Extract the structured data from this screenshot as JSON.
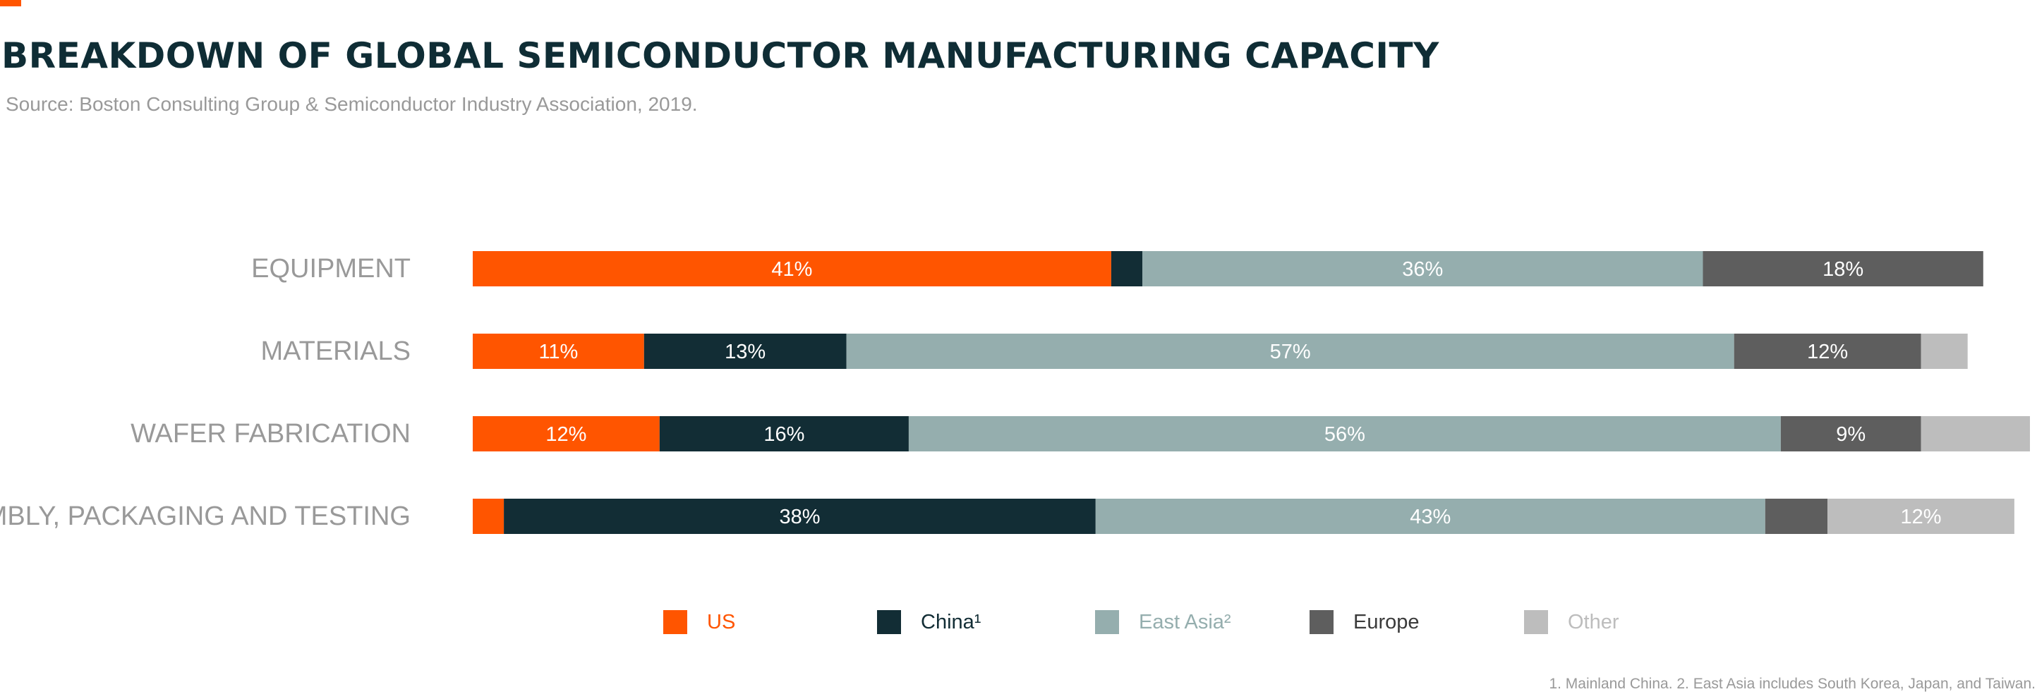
{
  "header": {
    "title": "BREAKDOWN OF GLOBAL SEMICONDUCTOR MANUFACTURING CAPACITY",
    "source": "Source: Boston Consulting Group & Semiconductor Industry Association, 2019."
  },
  "footnote": "1. Mainland China. 2. East Asia includes South Korea, Japan, and Taiwan.",
  "colors": {
    "accent": "#ff5500",
    "title": "#0f2d35",
    "us": "#ff5500",
    "china": "#122d35",
    "east_asia": "#95aeae",
    "europe": "#5e5e5e",
    "other": "#bdbdbd",
    "category_label": "#999999",
    "bar_label": "#ffffff"
  },
  "legend": [
    {
      "name": "US",
      "text_color": "#ff5500"
    },
    {
      "name": "China¹",
      "text_color": "#122d35"
    },
    {
      "name": "East Asia²",
      "text_color": "#95aeae"
    },
    {
      "name": "Europe",
      "text_color": "#3a3a3a"
    },
    {
      "name": "Other",
      "text_color": "#bdbdbd"
    }
  ],
  "chart_data": {
    "type": "bar",
    "orientation": "horizontal",
    "stacked": true,
    "categories": [
      "EQUIPMENT",
      "MATERIALS",
      "WAFER FABRICATION",
      "ASSEMBLY, PACKAGING AND TESTING"
    ],
    "series": [
      {
        "name": "US",
        "values": [
          41,
          11,
          12,
          2
        ],
        "labels": [
          "41%",
          "11%",
          "12%",
          ""
        ]
      },
      {
        "name": "China¹",
        "values": [
          2,
          13,
          16,
          38
        ],
        "labels": [
          "",
          "13%",
          "16%",
          "38%"
        ]
      },
      {
        "name": "East Asia²",
        "values": [
          36,
          57,
          56,
          43
        ],
        "labels": [
          "36%",
          "57%",
          "56%",
          "43%"
        ]
      },
      {
        "name": "Europe",
        "values": [
          18,
          12,
          9,
          4
        ],
        "labels": [
          "18%",
          "12%",
          "9%",
          ""
        ]
      },
      {
        "name": "Other",
        "values": [
          0,
          3,
          7,
          12
        ],
        "labels": [
          "",
          "",
          "",
          "12%"
        ]
      }
    ],
    "xlim": [
      0,
      100
    ],
    "legend_position": "bottom",
    "grid": false
  }
}
